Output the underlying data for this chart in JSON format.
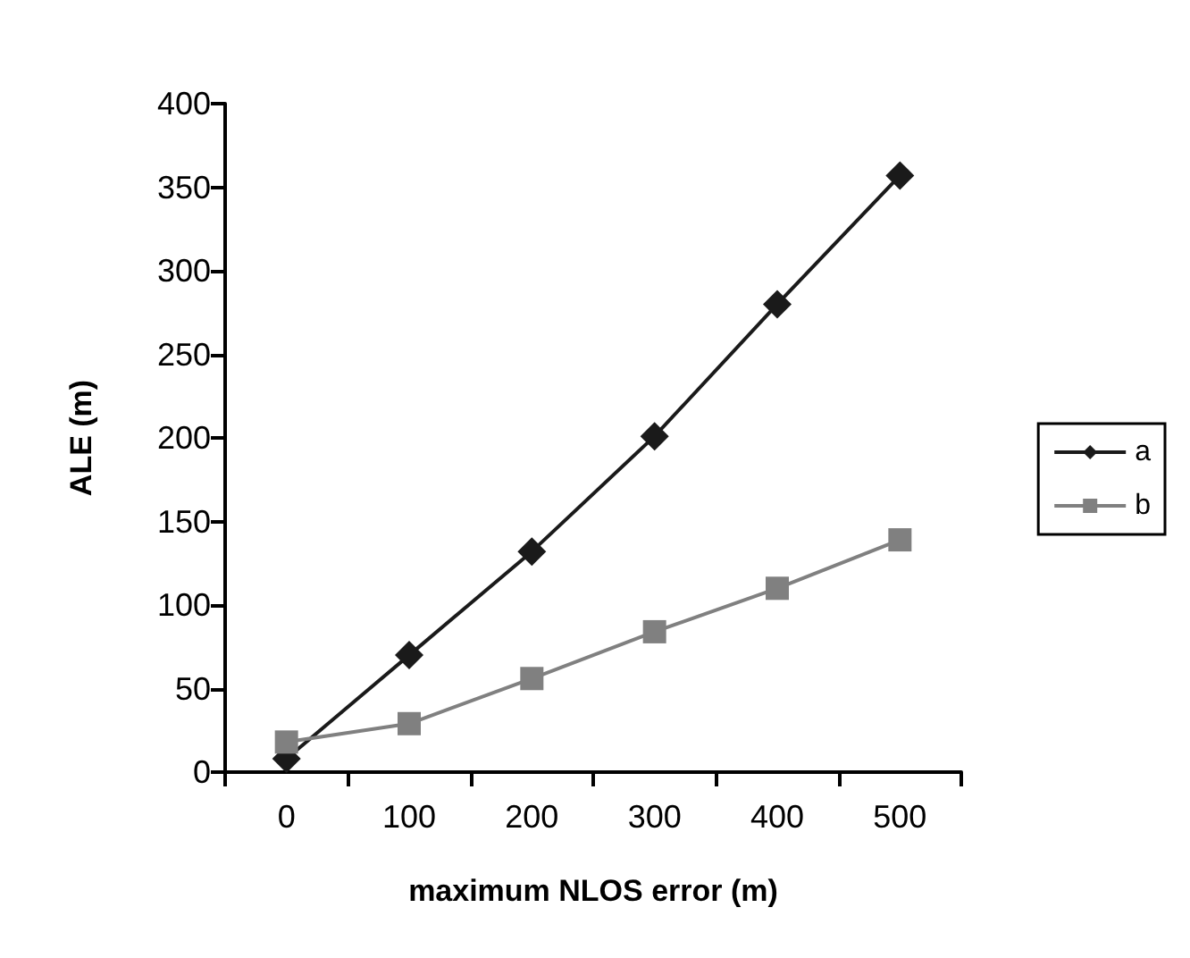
{
  "chart_data": {
    "type": "line",
    "xlabel": "maximum NLOS error (m)",
    "ylabel": "ALE (m)",
    "categories": [
      "0",
      "100",
      "200",
      "300",
      "400",
      "500"
    ],
    "series": [
      {
        "name": "a",
        "color": "#1a1a1a",
        "marker": "diamond",
        "values": [
          8,
          70,
          132,
          201,
          280,
          357
        ]
      },
      {
        "name": "b",
        "color": "#808080",
        "marker": "square",
        "values": [
          18,
          29,
          56,
          84,
          110,
          139
        ]
      }
    ],
    "ylim": [
      0,
      400
    ],
    "yticks": [
      0,
      50,
      100,
      150,
      200,
      250,
      300,
      350,
      400
    ],
    "grid": false,
    "legend": "right",
    "line_style": "solid"
  }
}
